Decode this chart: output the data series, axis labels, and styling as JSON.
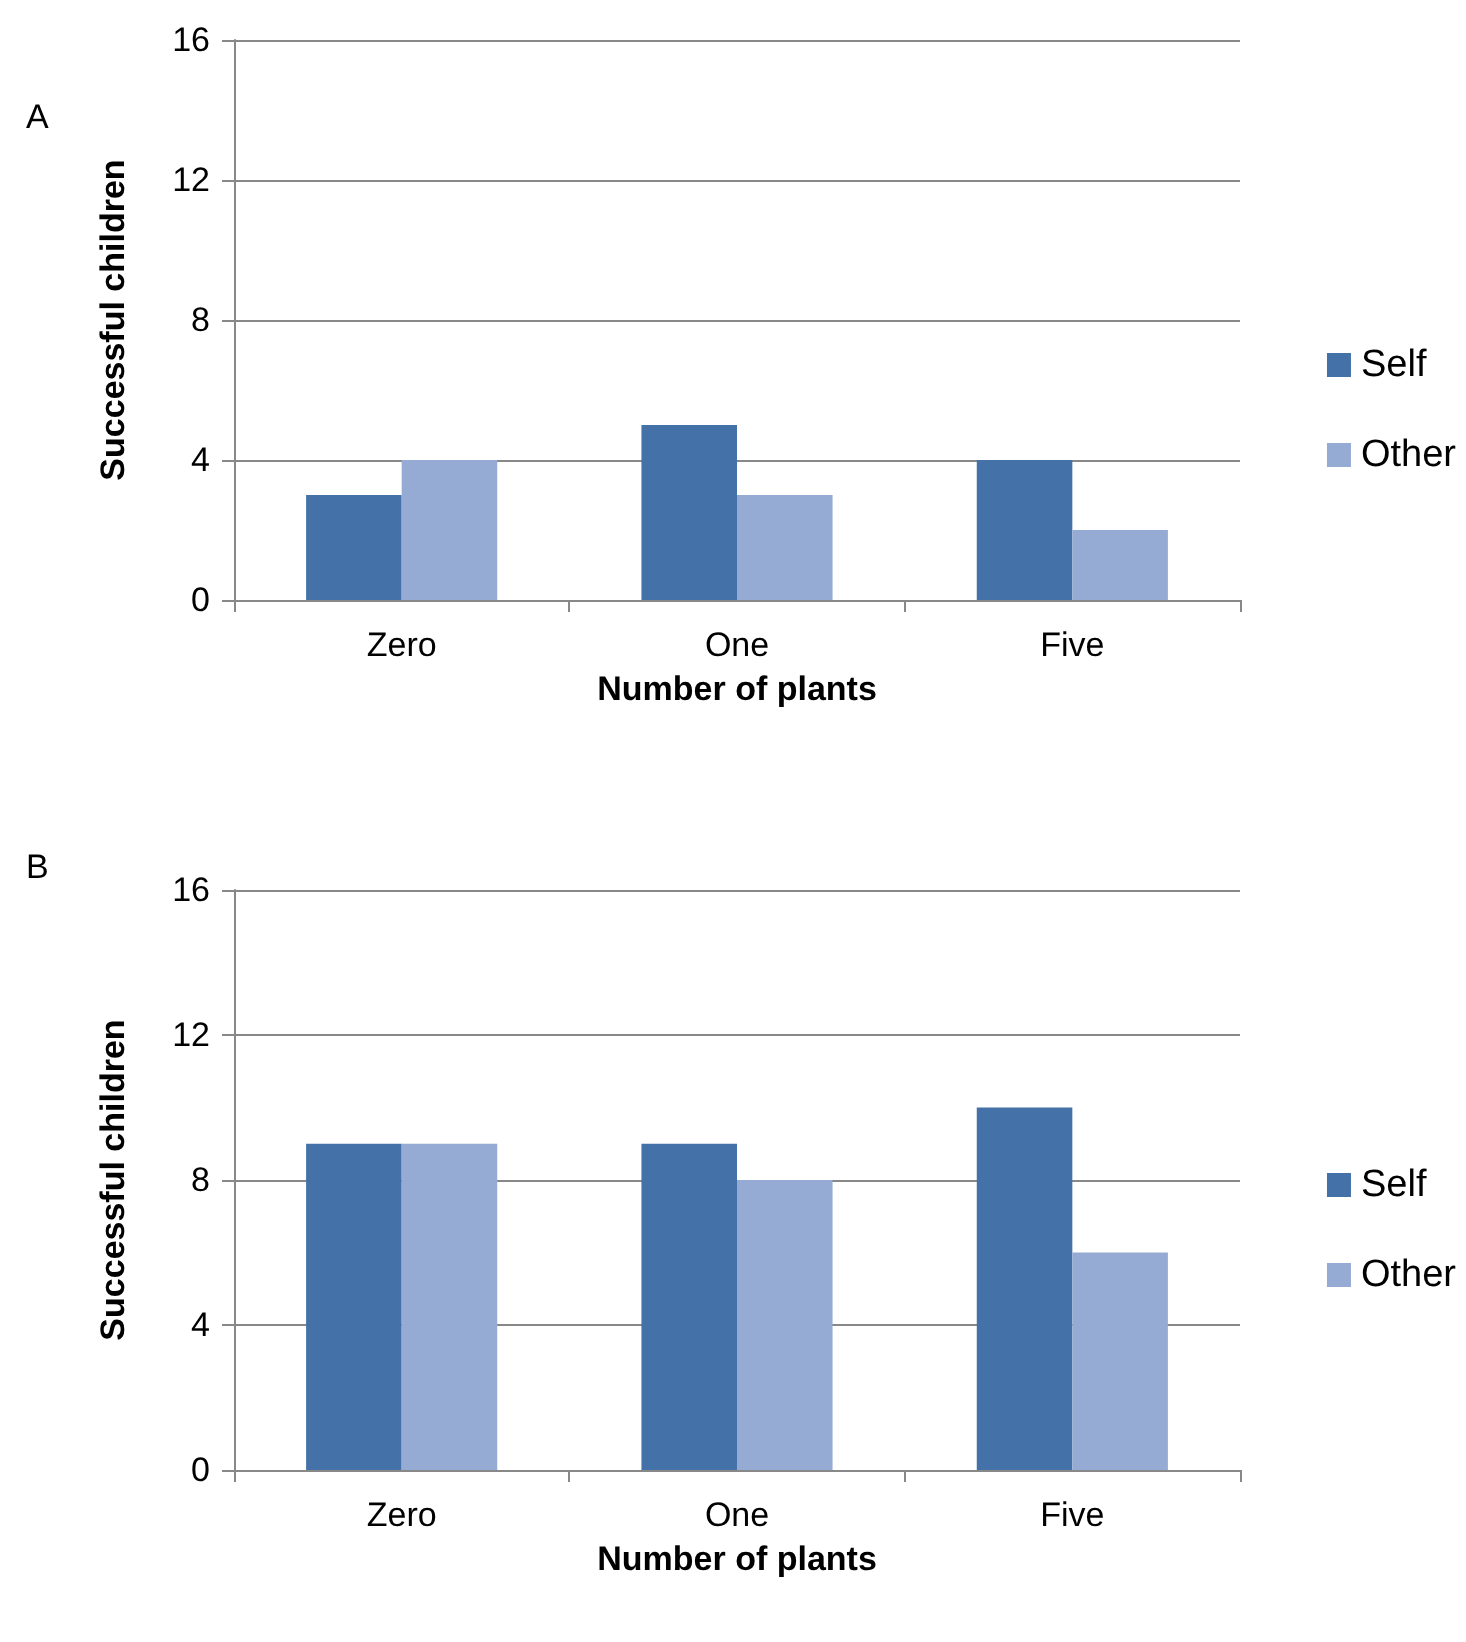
{
  "chart_data": [
    {
      "type": "bar",
      "title": "A",
      "xlabel": "Number of plants",
      "ylabel": "Successful children",
      "categories": [
        "Zero",
        "One",
        "Five"
      ],
      "series": [
        {
          "name": "Self",
          "color": "#4472a8",
          "values": [
            3,
            5,
            4
          ]
        },
        {
          "name": "Other",
          "color": "#95abd4",
          "values": [
            4,
            3,
            2
          ]
        }
      ],
      "ylim": [
        0,
        16
      ],
      "yticks": [
        0,
        4,
        8,
        12,
        16
      ],
      "grid": "y",
      "legend": "right"
    },
    {
      "type": "bar",
      "title": "B",
      "xlabel": "Number of plants",
      "ylabel": "Successful children",
      "categories": [
        "Zero",
        "One",
        "Five"
      ],
      "series": [
        {
          "name": "Self",
          "color": "#4472a8",
          "values": [
            9,
            9,
            10
          ]
        },
        {
          "name": "Other",
          "color": "#95abd4",
          "values": [
            9,
            8,
            6
          ]
        }
      ],
      "ylim": [
        0,
        16
      ],
      "yticks": [
        0,
        4,
        8,
        12,
        16
      ],
      "grid": "y",
      "legend": "right"
    }
  ]
}
